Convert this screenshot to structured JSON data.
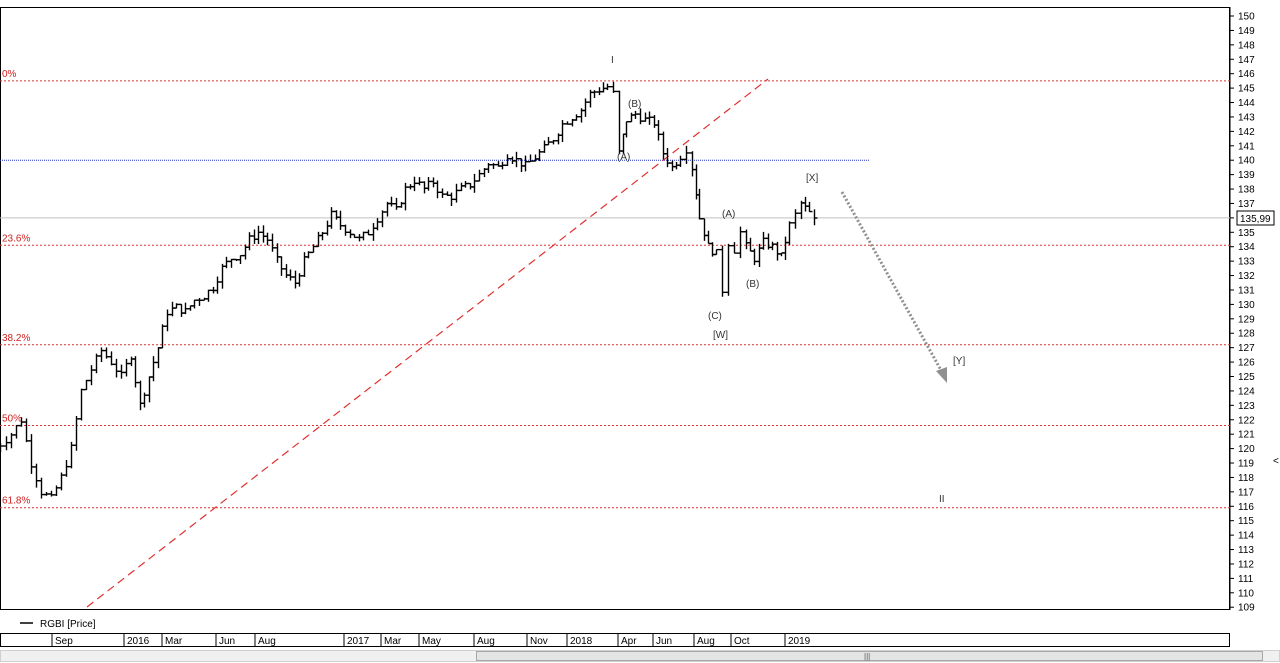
{
  "legend": {
    "series_label": "RGBI [Price]"
  },
  "last_price_label": "135,99",
  "scroll": {
    "thumb_glyph": "|||",
    "side_arrow": "<"
  },
  "colors": {
    "price": "#000000",
    "fib": "#e03030",
    "blue_line": "#2030c0",
    "gray_line": "#c0c0c0",
    "arrow": "#909090"
  },
  "chart_data": {
    "type": "line",
    "style": "ohlc-bars",
    "series": [
      {
        "name": "RGBI [Price]"
      }
    ],
    "y_axis": {
      "side": "right",
      "range": [
        109,
        150
      ],
      "ticks": [
        150,
        149,
        148,
        147,
        146,
        145,
        144,
        143,
        142,
        141,
        140,
        139,
        138,
        137,
        136,
        135,
        134,
        133,
        132,
        131,
        130,
        129,
        128,
        127,
        126,
        125,
        124,
        123,
        122,
        121,
        120,
        119,
        118,
        117,
        116,
        115,
        114,
        113,
        112,
        111,
        110,
        109
      ]
    },
    "x_axis": {
      "months": [
        "Sep",
        "2016",
        "Mar",
        "Jun",
        "Aug",
        "2017",
        "Mar",
        "May",
        "Aug",
        "Nov",
        "2018",
        "Apr",
        "Jun",
        "Aug",
        "Oct",
        "2019"
      ]
    },
    "last_value": 135.99,
    "fib_levels": [
      {
        "label": "0%",
        "value": 145.5
      },
      {
        "label": "23.6%",
        "value": 134.1
      },
      {
        "label": "38.2%",
        "value": 127.2
      },
      {
        "label": "50%",
        "value": 121.6
      },
      {
        "label": "61.8%",
        "value": 115.9
      }
    ],
    "horizontal_lines": [
      {
        "kind": "blue-dotted",
        "value": 140.0
      },
      {
        "kind": "gray-solid",
        "value": 136.0
      }
    ],
    "trendline": {
      "kind": "red-dashed",
      "from": {
        "date": "2015-09",
        "value": 109
      },
      "to": {
        "date": "2018-08",
        "value": 146
      }
    },
    "projection_arrow": {
      "from": {
        "date": "2019-02",
        "value": 138
      },
      "to": {
        "date": "2019-06",
        "value": 125
      }
    },
    "wave_labels": [
      "I",
      "(B)",
      "(A)",
      "[X]",
      "(A)",
      "(B)",
      "(C)",
      "[W]",
      "[Y]",
      "II"
    ],
    "price_path": [
      [
        "2015-06",
        120
      ],
      [
        "2015-07",
        121
      ],
      [
        "2015-07",
        122
      ],
      [
        "2015-08",
        119
      ],
      [
        "2015-08",
        117
      ],
      [
        "2015-09",
        116.5
      ],
      [
        "2015-09",
        118
      ],
      [
        "2015-10",
        120
      ],
      [
        "2015-10",
        124
      ],
      [
        "2015-11",
        125.5
      ],
      [
        "2015-11",
        126.8
      ],
      [
        "2015-12",
        126
      ],
      [
        "2015-12",
        125
      ],
      [
        "2016-01",
        126.5
      ],
      [
        "2016-01",
        123
      ],
      [
        "2016-02",
        125
      ],
      [
        "2016-02",
        127
      ],
      [
        "2016-03",
        129.5
      ],
      [
        "2016-03",
        129.8
      ],
      [
        "2016-04",
        129.5
      ],
      [
        "2016-04",
        130.3
      ],
      [
        "2016-05",
        130.6
      ],
      [
        "2016-05",
        131.2
      ],
      [
        "2016-06",
        132.5
      ],
      [
        "2016-06",
        133.2
      ],
      [
        "2016-07",
        133.5
      ],
      [
        "2016-07",
        134.5
      ],
      [
        "2016-08",
        135
      ],
      [
        "2016-08",
        134.5
      ],
      [
        "2016-09",
        133
      ],
      [
        "2016-09",
        132
      ],
      [
        "2016-10",
        131.5
      ],
      [
        "2016-10",
        133
      ],
      [
        "2016-11",
        134
      ],
      [
        "2016-11",
        135
      ],
      [
        "2016-12",
        136.2
      ],
      [
        "2016-12",
        135.5
      ],
      [
        "2017-01",
        135
      ],
      [
        "2017-01",
        134.5
      ],
      [
        "2017-02",
        135
      ],
      [
        "2017-02",
        136
      ],
      [
        "2017-03",
        137
      ],
      [
        "2017-03",
        136.5
      ],
      [
        "2017-04",
        138
      ],
      [
        "2017-04",
        138.6
      ],
      [
        "2017-05",
        138
      ],
      [
        "2017-05",
        138.5
      ],
      [
        "2017-06",
        137.5
      ],
      [
        "2017-06",
        137.5
      ],
      [
        "2017-07",
        138
      ],
      [
        "2017-07",
        138.3
      ],
      [
        "2017-08",
        139
      ],
      [
        "2017-08",
        139.8
      ],
      [
        "2017-09",
        139.5
      ],
      [
        "2017-09",
        140.4
      ],
      [
        "2017-10",
        140
      ],
      [
        "2017-10",
        139.6
      ],
      [
        "2017-11",
        140.2
      ],
      [
        "2017-11",
        140.8
      ],
      [
        "2017-12",
        141.5
      ],
      [
        "2017-12",
        142.5
      ],
      [
        "2018-01",
        143
      ],
      [
        "2018-01",
        143.5
      ],
      [
        "2018-02",
        144.6
      ],
      [
        "2018-02",
        144.9
      ],
      [
        "2018-03",
        145.1
      ],
      [
        "2018-03",
        144.6
      ],
      [
        "2018-03",
        140.5
      ],
      [
        "2018-04",
        142.8
      ],
      [
        "2018-04",
        143.2
      ],
      [
        "2018-05",
        142.8
      ],
      [
        "2018-05",
        142.6
      ],
      [
        "2018-06",
        140.5
      ],
      [
        "2018-06",
        139.5
      ],
      [
        "2018-07",
        140.3
      ],
      [
        "2018-07",
        140.8
      ],
      [
        "2018-07",
        139.5
      ],
      [
        "2018-08",
        136
      ],
      [
        "2018-08",
        134
      ],
      [
        "2018-09",
        133.5
      ],
      [
        "2018-09",
        131
      ],
      [
        "2018-09",
        134.3
      ],
      [
        "2018-10",
        133.8
      ],
      [
        "2018-10",
        135
      ],
      [
        "2018-10",
        134
      ],
      [
        "2018-11",
        133.2
      ],
      [
        "2018-11",
        134.3
      ],
      [
        "2018-12",
        134
      ],
      [
        "2018-12",
        133.3
      ],
      [
        "2019-01",
        135.5
      ],
      [
        "2019-01",
        136.2
      ],
      [
        "2019-01",
        137
      ],
      [
        "2019-02",
        135.99
      ]
    ]
  }
}
